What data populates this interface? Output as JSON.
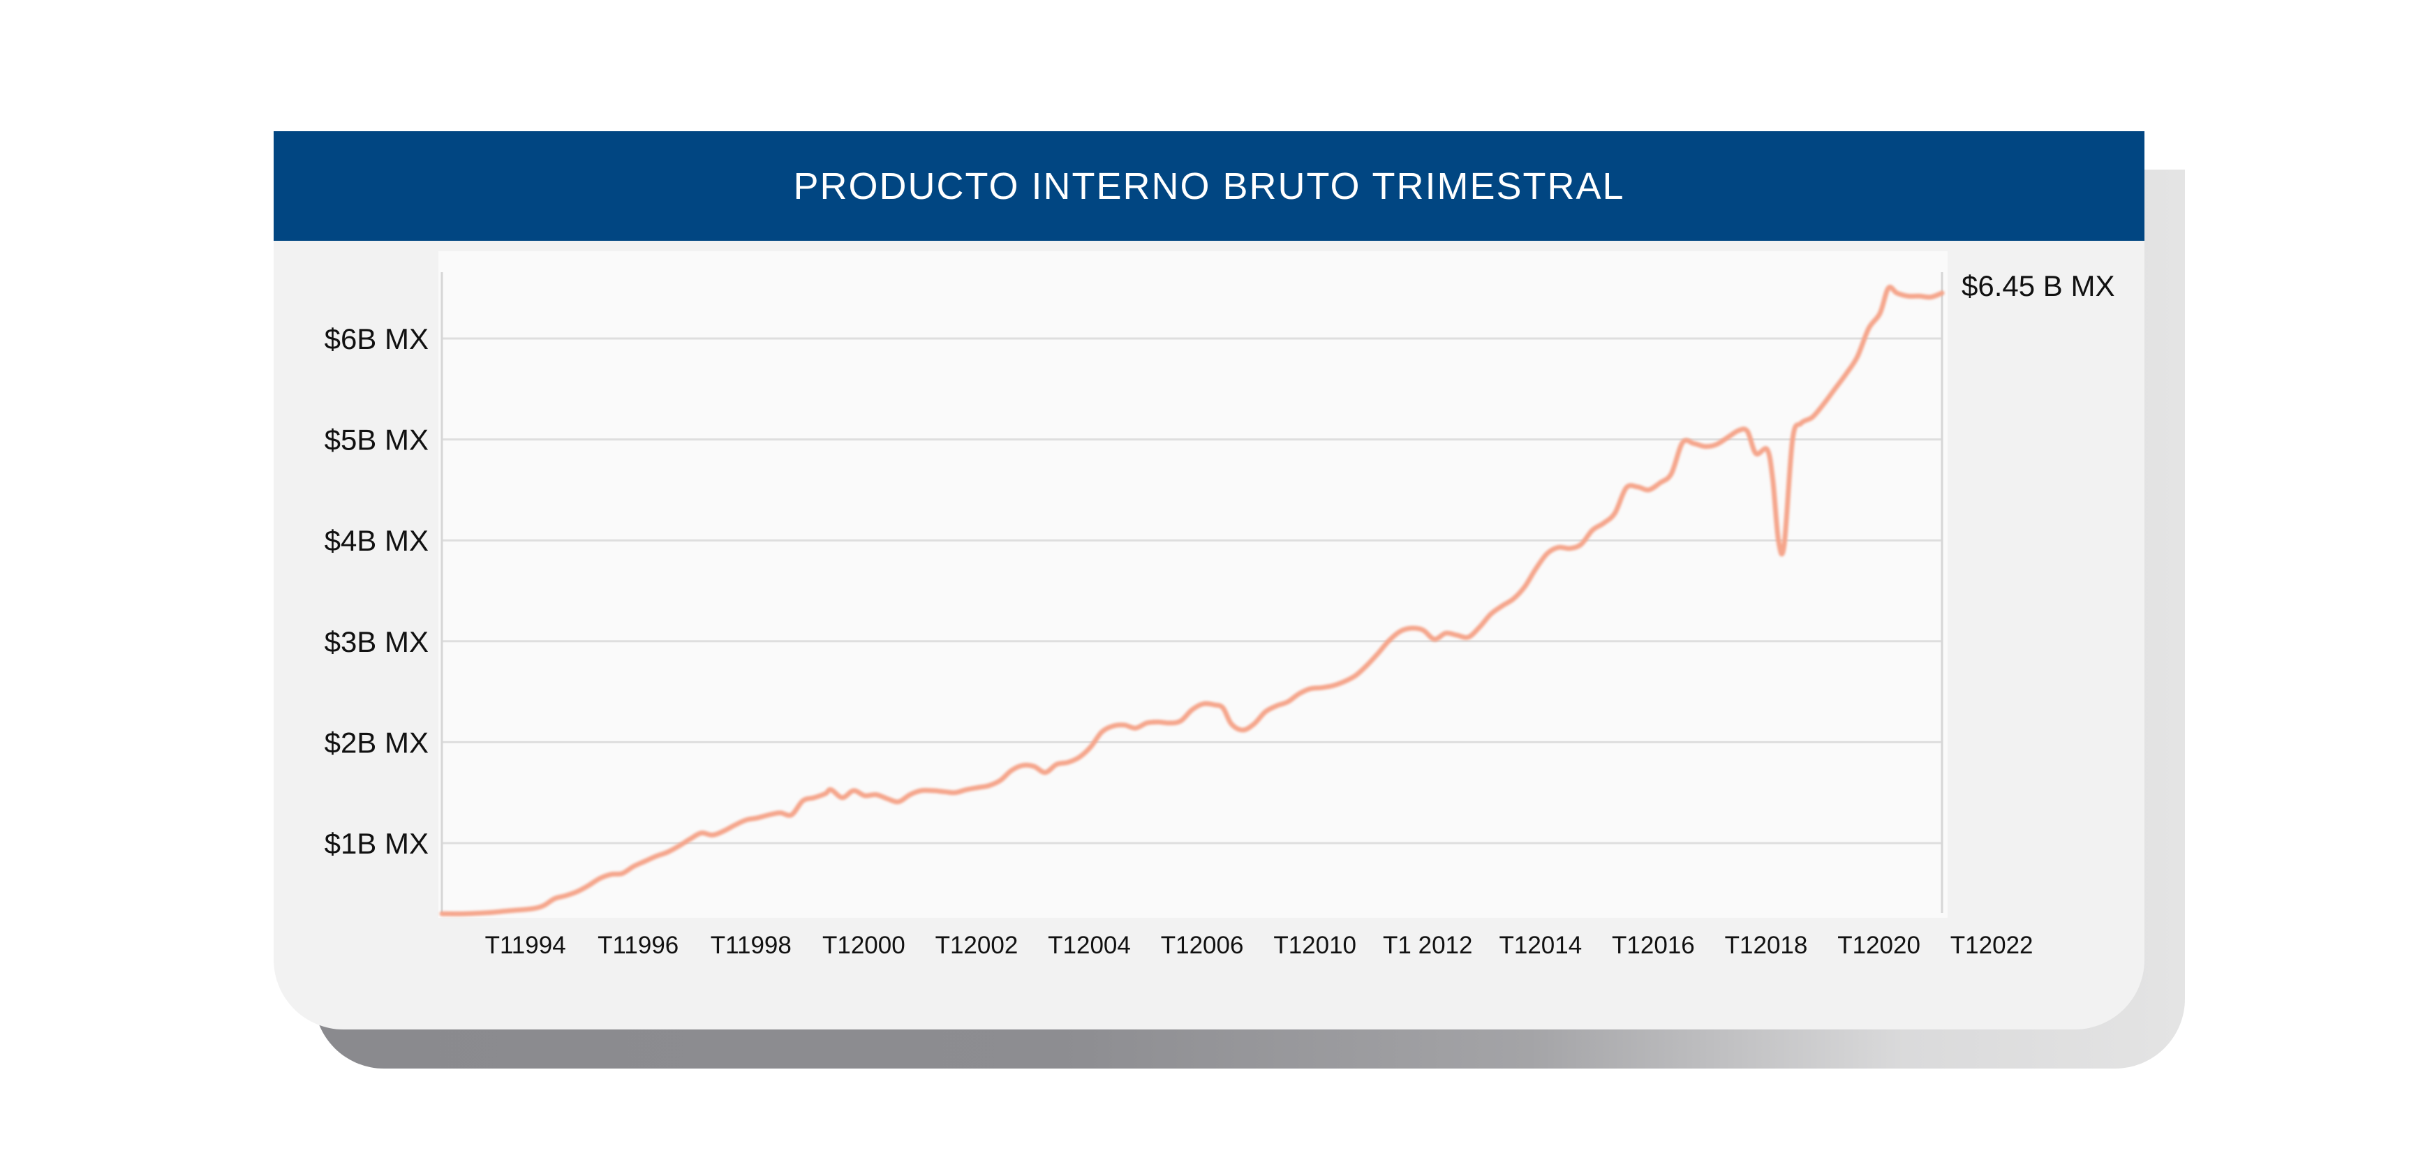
{
  "chart_data": {
    "type": "line",
    "title": "PRODUCTO INTERNO BRUTO TRIMESTRAL",
    "xlabel": "",
    "ylabel": "",
    "y_unit": "billones MX",
    "ylim": [
      0.15,
      6.7
    ],
    "grid": true,
    "yticks": [
      {
        "value": 1,
        "label": "$1B MX"
      },
      {
        "value": 2,
        "label": "$2B MX"
      },
      {
        "value": 3,
        "label": "$3B MX"
      },
      {
        "value": 4,
        "label": "$4B MX"
      },
      {
        "value": 5,
        "label": "$5B MX"
      },
      {
        "value": 6,
        "label": "$6B MX"
      }
    ],
    "xticks": [
      {
        "year": 1994.0,
        "label": "T11994"
      },
      {
        "year": 1996.0,
        "label": "T11996"
      },
      {
        "year": 1998.0,
        "label": "T11998"
      },
      {
        "year": 2000.0,
        "label": "T12000"
      },
      {
        "year": 2002.0,
        "label": "T12002"
      },
      {
        "year": 2004.0,
        "label": "T12004"
      },
      {
        "year": 2006.0,
        "label": "T12006"
      },
      {
        "year": 2008.0,
        "label": "T12010"
      },
      {
        "year": 2010.0,
        "label": "T1 2012"
      },
      {
        "year": 2012.0,
        "label": "T12014"
      },
      {
        "year": 2014.0,
        "label": "T12016"
      },
      {
        "year": 2016.0,
        "label": "T12018"
      },
      {
        "year": 2018.0,
        "label": "T12020"
      },
      {
        "year": 2020.0,
        "label": "T12022"
      }
    ],
    "last_value_label": "$6.45 B MX",
    "line_color": "#f5a58b",
    "series": [
      {
        "name": "",
        "points": [
          [
            1993.2,
            0.3
          ],
          [
            1993.6,
            0.3
          ],
          [
            1994.0,
            0.31
          ],
          [
            1994.4,
            0.33
          ],
          [
            1994.8,
            0.35
          ],
          [
            1995.0,
            0.38
          ],
          [
            1995.2,
            0.45
          ],
          [
            1995.4,
            0.48
          ],
          [
            1995.6,
            0.52
          ],
          [
            1995.8,
            0.58
          ],
          [
            1996.0,
            0.65
          ],
          [
            1996.2,
            0.69
          ],
          [
            1996.4,
            0.7
          ],
          [
            1996.6,
            0.77
          ],
          [
            1996.8,
            0.82
          ],
          [
            1997.0,
            0.87
          ],
          [
            1997.2,
            0.91
          ],
          [
            1997.4,
            0.97
          ],
          [
            1997.6,
            1.04
          ],
          [
            1997.8,
            1.1
          ],
          [
            1998.0,
            1.08
          ],
          [
            1998.2,
            1.12
          ],
          [
            1998.4,
            1.18
          ],
          [
            1998.6,
            1.23
          ],
          [
            1998.8,
            1.25
          ],
          [
            1999.0,
            1.28
          ],
          [
            1999.2,
            1.3
          ],
          [
            1999.4,
            1.28
          ],
          [
            1999.6,
            1.42
          ],
          [
            1999.8,
            1.45
          ],
          [
            2000.0,
            1.49
          ],
          [
            2000.1,
            1.53
          ],
          [
            2000.3,
            1.45
          ],
          [
            2000.5,
            1.52
          ],
          [
            2000.7,
            1.47
          ],
          [
            2000.9,
            1.48
          ],
          [
            2001.1,
            1.44
          ],
          [
            2001.3,
            1.41
          ],
          [
            2001.5,
            1.48
          ],
          [
            2001.7,
            1.52
          ],
          [
            2001.9,
            1.52
          ],
          [
            2002.1,
            1.51
          ],
          [
            2002.3,
            1.5
          ],
          [
            2002.5,
            1.53
          ],
          [
            2002.7,
            1.55
          ],
          [
            2002.9,
            1.57
          ],
          [
            2003.1,
            1.62
          ],
          [
            2003.3,
            1.72
          ],
          [
            2003.5,
            1.77
          ],
          [
            2003.7,
            1.76
          ],
          [
            2003.9,
            1.7
          ],
          [
            2004.1,
            1.78
          ],
          [
            2004.3,
            1.8
          ],
          [
            2004.5,
            1.85
          ],
          [
            2004.7,
            1.95
          ],
          [
            2004.9,
            2.1
          ],
          [
            2005.1,
            2.16
          ],
          [
            2005.3,
            2.17
          ],
          [
            2005.5,
            2.14
          ],
          [
            2005.7,
            2.19
          ],
          [
            2005.9,
            2.2
          ],
          [
            2006.1,
            2.19
          ],
          [
            2006.3,
            2.21
          ],
          [
            2006.5,
            2.32
          ],
          [
            2006.7,
            2.38
          ],
          [
            2006.9,
            2.37
          ],
          [
            2007.05,
            2.34
          ],
          [
            2007.2,
            2.18
          ],
          [
            2007.4,
            2.12
          ],
          [
            2007.6,
            2.18
          ],
          [
            2007.8,
            2.3
          ],
          [
            2008.0,
            2.36
          ],
          [
            2008.2,
            2.4
          ],
          [
            2008.4,
            2.48
          ],
          [
            2008.6,
            2.53
          ],
          [
            2008.8,
            2.54
          ],
          [
            2009.0,
            2.56
          ],
          [
            2009.2,
            2.6
          ],
          [
            2009.4,
            2.66
          ],
          [
            2009.6,
            2.76
          ],
          [
            2009.8,
            2.88
          ],
          [
            2010.0,
            3.01
          ],
          [
            2010.2,
            3.1
          ],
          [
            2010.4,
            3.13
          ],
          [
            2010.6,
            3.11
          ],
          [
            2010.8,
            3.02
          ],
          [
            2011.0,
            3.08
          ],
          [
            2011.2,
            3.06
          ],
          [
            2011.4,
            3.04
          ],
          [
            2011.6,
            3.14
          ],
          [
            2011.8,
            3.27
          ],
          [
            2012.0,
            3.35
          ],
          [
            2012.2,
            3.42
          ],
          [
            2012.4,
            3.54
          ],
          [
            2012.6,
            3.72
          ],
          [
            2012.8,
            3.87
          ],
          [
            2013.0,
            3.93
          ],
          [
            2013.2,
            3.92
          ],
          [
            2013.4,
            3.96
          ],
          [
            2013.6,
            4.1
          ],
          [
            2013.8,
            4.17
          ],
          [
            2014.0,
            4.27
          ],
          [
            2014.2,
            4.52
          ],
          [
            2014.4,
            4.53
          ],
          [
            2014.6,
            4.5
          ],
          [
            2014.8,
            4.57
          ],
          [
            2015.0,
            4.66
          ],
          [
            2015.2,
            4.97
          ],
          [
            2015.4,
            4.96
          ],
          [
            2015.6,
            4.93
          ],
          [
            2015.8,
            4.95
          ],
          [
            2016.0,
            5.02
          ],
          [
            2016.2,
            5.09
          ],
          [
            2016.35,
            5.08
          ],
          [
            2016.5,
            4.86
          ],
          [
            2016.7,
            4.9
          ],
          [
            2016.8,
            4.6
          ],
          [
            2016.9,
            4.0
          ],
          [
            2017.0,
            3.95
          ],
          [
            2017.15,
            5.0
          ],
          [
            2017.3,
            5.16
          ],
          [
            2017.5,
            5.22
          ],
          [
            2017.7,
            5.35
          ],
          [
            2017.9,
            5.5
          ],
          [
            2018.1,
            5.65
          ],
          [
            2018.3,
            5.82
          ],
          [
            2018.5,
            6.1
          ],
          [
            2018.7,
            6.25
          ],
          [
            2018.85,
            6.5
          ],
          [
            2019.0,
            6.45
          ],
          [
            2019.2,
            6.42
          ],
          [
            2019.4,
            6.42
          ],
          [
            2019.6,
            6.41
          ],
          [
            2019.8,
            6.45
          ]
        ]
      }
    ]
  }
}
